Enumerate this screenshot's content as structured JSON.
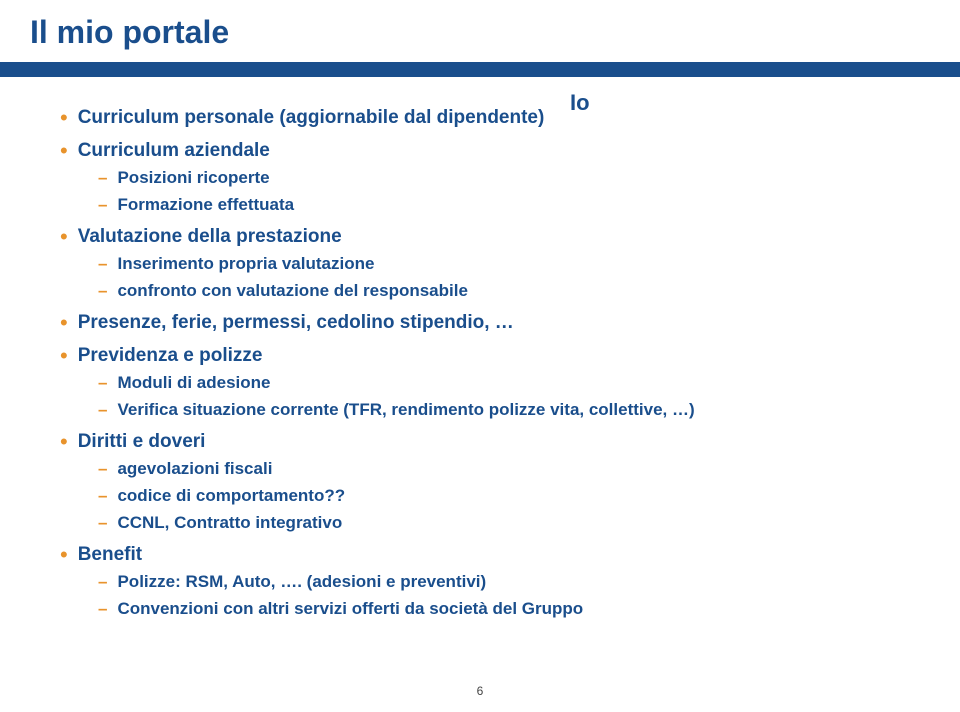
{
  "title": "Il mio portale",
  "tag": "Io",
  "page_number": "6",
  "colors": {
    "primary": "#1a4e8c",
    "accent": "#e8932c",
    "background": "#ffffff"
  },
  "items": [
    {
      "label": "Curriculum personale (aggiornabile dal dipendente)",
      "children": []
    },
    {
      "label": "Curriculum aziendale",
      "children": [
        {
          "label": "Posizioni ricoperte"
        },
        {
          "label": "Formazione effettuata"
        }
      ]
    },
    {
      "label": "Valutazione della prestazione",
      "children": [
        {
          "label": "Inserimento propria valutazione"
        },
        {
          "label": "confronto con valutazione del responsabile"
        }
      ]
    },
    {
      "label": "Presenze, ferie, permessi, cedolino stipendio, …",
      "children": []
    },
    {
      "label": "Previdenza e polizze",
      "children": [
        {
          "label": "Moduli di adesione"
        },
        {
          "label": "Verifica situazione corrente (TFR, rendimento polizze vita, collettive, …)"
        }
      ]
    },
    {
      "label": "Diritti e doveri",
      "children": [
        {
          "label": "agevolazioni fiscali"
        },
        {
          "label": "codice di comportamento??"
        },
        {
          "label": "CCNL, Contratto integrativo"
        }
      ]
    },
    {
      "label": "Benefit",
      "children": [
        {
          "label": "Polizze: RSM, Auto, …. (adesioni e preventivi)"
        },
        {
          "label": "Convenzioni con altri servizi offerti da società del Gruppo"
        }
      ]
    }
  ]
}
